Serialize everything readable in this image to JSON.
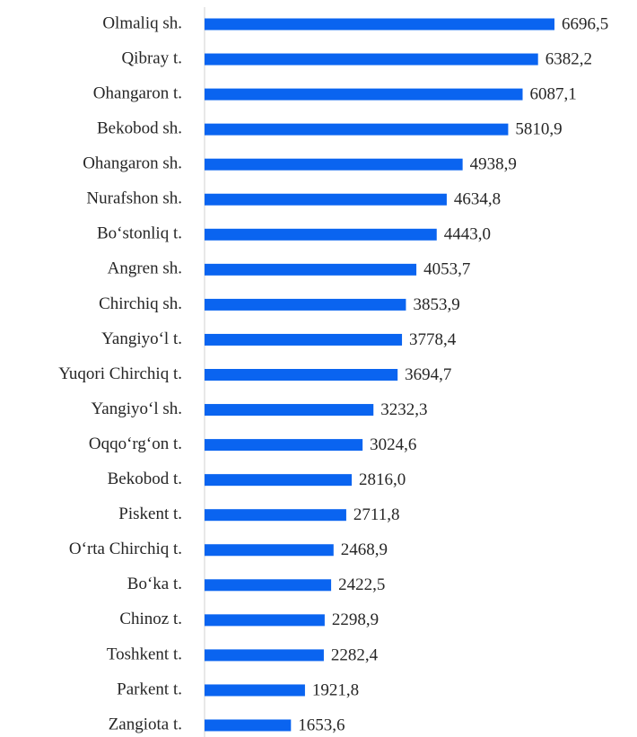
{
  "chart_data": {
    "type": "bar",
    "orientation": "horizontal",
    "color": "#0a64f0",
    "categories": [
      "Olmaliq sh.",
      "Qibray t.",
      "Ohangaron t.",
      "Bekobod sh.",
      "Ohangaron sh.",
      "Nurafshon sh.",
      "Bo‘stonliq t.",
      "Angren sh.",
      "Chirchiq sh.",
      "Yangiyo‘l t.",
      "Yuqori Chirchiq t.",
      "Yangiyo‘l sh.",
      "Oqqo‘rg‘on t.",
      "Bekobod t.",
      "Piskent t.",
      "O‘rta Chirchiq t.",
      "Bo‘ka t.",
      "Chinoz t.",
      "Toshkent t.",
      "Parkent t.",
      "Zangiota t."
    ],
    "values": [
      6696.5,
      6382.2,
      6087.1,
      5810.9,
      4938.9,
      4634.8,
      4443.0,
      4053.7,
      3853.9,
      3778.4,
      3694.7,
      3232.3,
      3024.6,
      2816.0,
      2711.8,
      2468.9,
      2422.5,
      2298.9,
      2282.4,
      1921.8,
      1653.6
    ],
    "value_labels": [
      "6696,5",
      "6382,2",
      "6087,1",
      "5810,9",
      "4938,9",
      "4634,8",
      "4443,0",
      "4053,7",
      "3853,9",
      "3778,4",
      "3694,7",
      "3232,3",
      "3024,6",
      "2816,0",
      "2711,8",
      "2468,9",
      "2422,5",
      "2298,9",
      "2282,4",
      "1921,8",
      "1653,6"
    ]
  }
}
